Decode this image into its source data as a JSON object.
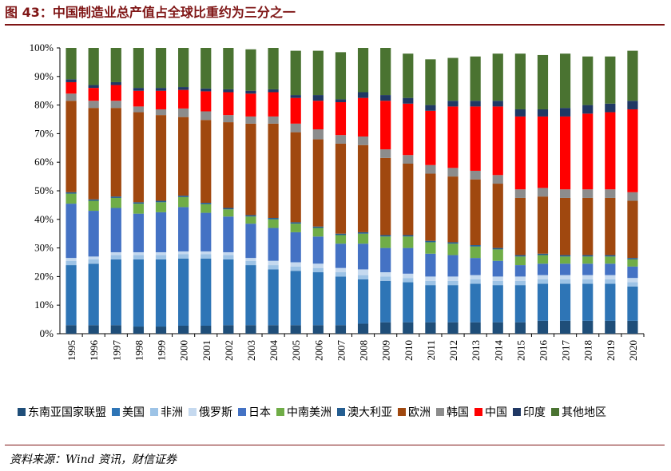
{
  "title": "图 43：中国制造业总产值占全球比重约为三分之一",
  "source": "资料来源：Wind 资讯，财信证券",
  "chart_data": {
    "type": "bar",
    "stacked": true,
    "title": "图 43：中国制造业总产值占全球比重约为三分之一",
    "xlabel": "",
    "ylabel": "",
    "ylim": [
      0,
      100
    ],
    "yticks": [
      "0%",
      "10%",
      "20%",
      "30%",
      "40%",
      "50%",
      "60%",
      "70%",
      "80%",
      "90%",
      "100%"
    ],
    "legend_position": "bottom",
    "grid": false,
    "categories": [
      "1995",
      "1996",
      "1997",
      "1998",
      "1999",
      "2000",
      "2001",
      "2002",
      "2003",
      "2004",
      "2005",
      "2006",
      "2007",
      "2008",
      "2009",
      "2010",
      "2011",
      "2012",
      "2013",
      "2014",
      "2015",
      "2016",
      "2017",
      "2018",
      "2019",
      "2020"
    ],
    "series": [
      {
        "name": "东南亚国家联盟",
        "color": "#1f4e79",
        "values": [
          3,
          3,
          3,
          2.5,
          2.5,
          2.8,
          2.8,
          3,
          3,
          3,
          3,
          3,
          3,
          3.5,
          4,
          4,
          4,
          4,
          4,
          4,
          4,
          4.5,
          4.5,
          4.5,
          4.5,
          4.5
        ]
      },
      {
        "name": "美国",
        "color": "#2e75b6",
        "values": [
          21,
          21.5,
          23,
          23.5,
          23.5,
          23.5,
          23.5,
          23,
          21,
          19.5,
          19,
          18.5,
          17,
          15.5,
          14.5,
          14,
          13,
          13,
          13.5,
          13,
          13,
          13,
          13,
          13,
          13,
          12
        ]
      },
      {
        "name": "非洲",
        "color": "#9dc3e6",
        "values": [
          1.5,
          1.5,
          1.5,
          1.5,
          1.5,
          1.5,
          1.5,
          1.5,
          1.5,
          1.5,
          1.5,
          1.5,
          1.5,
          1.5,
          1.5,
          1.5,
          1.5,
          1.5,
          1.5,
          1.5,
          1.5,
          1.5,
          1.5,
          1.5,
          1.5,
          1.5
        ]
      },
      {
        "name": "俄罗斯",
        "color": "#c5d9ef",
        "values": [
          1,
          1,
          1,
          1,
          1,
          1,
          1,
          1,
          1,
          1.5,
          1.5,
          1.5,
          1.5,
          2,
          1.5,
          1.5,
          1.5,
          1.5,
          1.5,
          1.5,
          1.5,
          1.5,
          1.5,
          1.5,
          1.5,
          1.5
        ]
      },
      {
        "name": "日本",
        "color": "#4472c4",
        "values": [
          19,
          16,
          15.5,
          13.5,
          14,
          15.5,
          13.5,
          12.5,
          12,
          11.5,
          10.5,
          9.5,
          8.5,
          9,
          8.5,
          9,
          8,
          7.5,
          6,
          5.5,
          4,
          4,
          4,
          4,
          4,
          4
        ]
      },
      {
        "name": "中南美洲",
        "color": "#70ad47",
        "values": [
          3.5,
          3.5,
          3.5,
          3.5,
          3.5,
          3.5,
          3,
          2.5,
          2.5,
          3,
          3,
          3,
          3,
          3.5,
          4,
          4,
          4,
          4,
          4,
          4,
          3,
          3,
          2.5,
          2.5,
          2.5,
          2.5
        ]
      },
      {
        "name": "澳大利亚",
        "color": "#255e91",
        "values": [
          0.5,
          0.5,
          0.5,
          0.5,
          0.5,
          0.5,
          0.5,
          0.5,
          0.5,
          0.5,
          0.5,
          0.5,
          0.5,
          0.5,
          0.5,
          0.5,
          0.5,
          0.5,
          0.5,
          0.5,
          0.5,
          0.5,
          0.5,
          0.5,
          0.5,
          0.5
        ]
      },
      {
        "name": "欧洲",
        "color": "#a0480f",
        "values": [
          32,
          32,
          31,
          31.5,
          30,
          27.5,
          29,
          30,
          32,
          33,
          31.5,
          30.5,
          31.5,
          30.5,
          27,
          25,
          23.5,
          23,
          23,
          22.5,
          20,
          20,
          20,
          20,
          20,
          20
        ]
      },
      {
        "name": "韩国",
        "color": "#8c8c8c",
        "values": [
          2.5,
          2.5,
          2.5,
          2,
          2,
          3,
          3,
          2.5,
          2.5,
          2.5,
          3,
          3.5,
          3,
          3,
          3,
          3,
          3,
          3,
          3,
          3,
          3,
          3,
          3,
          3,
          3,
          3
        ]
      },
      {
        "name": "中国",
        "color": "#ff0000",
        "values": [
          4,
          4.5,
          5.5,
          5.5,
          6.5,
          6.5,
          7,
          8,
          8,
          8.5,
          9,
          10,
          11.5,
          13.5,
          17,
          18,
          19,
          21.5,
          22.5,
          24,
          25.5,
          25,
          25.5,
          26.5,
          27,
          29
        ]
      },
      {
        "name": "印度",
        "color": "#203864",
        "values": [
          1,
          1,
          1,
          1,
          1,
          1,
          1,
          1,
          1,
          1,
          1,
          2,
          1,
          2,
          2,
          2,
          2,
          2,
          2,
          2,
          2.5,
          2.5,
          3,
          3,
          3,
          3
        ]
      },
      {
        "name": "其他地区",
        "color": "#4a7331",
        "values": [
          11,
          13,
          12,
          14,
          14,
          13.7,
          14.2,
          14.5,
          14.5,
          14.5,
          15.5,
          15.5,
          16.5,
          15.5,
          16.5,
          15.5,
          16,
          15,
          15.5,
          16.5,
          19.5,
          19,
          19,
          17,
          16.5,
          17.5
        ]
      }
    ]
  }
}
